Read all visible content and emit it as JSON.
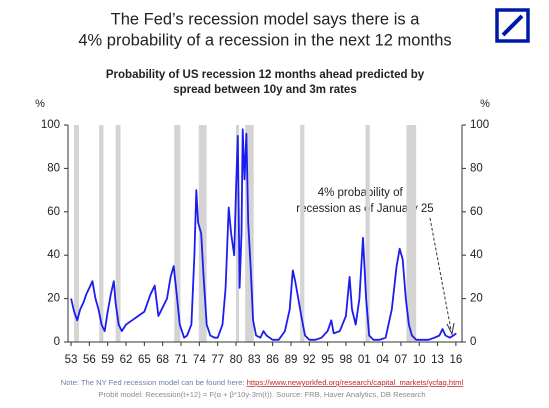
{
  "chart_data": {
    "type": "line",
    "title": [
      "The Fed’s recession model says there is a",
      "4% probability of a recession in the next 12 months"
    ],
    "subtitle": [
      "Probability of US recession 12 months ahead predicted by",
      "spread between 10y and 3m rates"
    ],
    "y_unit": "%",
    "y2_unit": "%",
    "color": "#1c1cf0",
    "recession_color": "#d4d4d4",
    "x": [
      1953.0,
      1953.5,
      1954.0,
      1954.5,
      1955.0,
      1955.5,
      1956.0,
      1956.5,
      1957.0,
      1957.5,
      1958.0,
      1958.5,
      1959.0,
      1959.5,
      1960.0,
      1960.3,
      1960.8,
      1961.3,
      1962.0,
      1963.0,
      1964.0,
      1965.0,
      1966.0,
      1966.7,
      1967.3,
      1968.0,
      1968.7,
      1969.3,
      1969.8,
      1970.3,
      1970.8,
      1971.5,
      1972.0,
      1972.7,
      1973.2,
      1973.5,
      1973.8,
      1974.3,
      1974.7,
      1975.2,
      1975.8,
      1976.5,
      1977.0,
      1977.8,
      1978.3,
      1978.8,
      1979.2,
      1979.7,
      1980.0,
      1980.3,
      1980.6,
      1980.9,
      1981.1,
      1981.4,
      1981.7,
      1982.0,
      1982.4,
      1982.8,
      1983.3,
      1984.0,
      1984.5,
      1985.0,
      1986.0,
      1987.0,
      1988.0,
      1988.8,
      1989.3,
      1989.7,
      1990.2,
      1990.7,
      1991.3,
      1992.0,
      1993.0,
      1994.0,
      1995.0,
      1995.6,
      1996.0,
      1997.0,
      1998.0,
      1998.6,
      1999.0,
      1999.6,
      2000.2,
      2000.8,
      2001.3,
      2001.8,
      2002.5,
      2003.5,
      2004.5,
      2005.5,
      2006.3,
      2006.8,
      2007.3,
      2007.8,
      2008.3,
      2008.8,
      2009.5,
      2010.5,
      2011.5,
      2012.5,
      2013.3,
      2013.8,
      2014.3,
      2015.0,
      2015.6,
      2016.07
    ],
    "values": [
      20,
      14,
      10,
      15,
      18,
      22,
      25,
      28,
      20,
      15,
      8,
      5,
      14,
      22,
      28,
      18,
      8,
      5,
      8,
      10,
      12,
      14,
      22,
      26,
      12,
      16,
      20,
      30,
      35,
      22,
      8,
      2,
      3,
      8,
      40,
      70,
      55,
      50,
      30,
      8,
      3,
      2,
      2,
      8,
      25,
      62,
      50,
      40,
      70,
      95,
      25,
      50,
      98,
      75,
      96,
      55,
      35,
      10,
      3,
      2,
      5,
      3,
      1,
      1,
      5,
      15,
      33,
      28,
      20,
      12,
      3,
      1,
      1,
      2,
      5,
      10,
      4,
      5,
      12,
      30,
      15,
      8,
      20,
      48,
      20,
      3,
      1,
      1,
      2,
      15,
      35,
      43,
      38,
      20,
      8,
      3,
      1,
      1,
      1,
      2,
      3,
      6,
      3,
      2,
      3,
      4
    ],
    "recessions": [
      [
        1953.5,
        1954.3
      ],
      [
        1957.6,
        1958.3
      ],
      [
        1960.3,
        1961.1
      ],
      [
        1969.9,
        1970.9
      ],
      [
        1973.9,
        1975.2
      ],
      [
        1980.0,
        1980.5
      ],
      [
        1981.5,
        1982.9
      ],
      [
        1990.5,
        1991.2
      ],
      [
        2001.2,
        2001.9
      ],
      [
        2007.9,
        2009.5
      ]
    ],
    "xlim": [
      1952.5,
      2017.0
    ],
    "xticks": [
      {
        "value": 1953,
        "label": "53"
      },
      {
        "value": 1956,
        "label": "56"
      },
      {
        "value": 1959,
        "label": "59"
      },
      {
        "value": 1962,
        "label": "62"
      },
      {
        "value": 1965,
        "label": "65"
      },
      {
        "value": 1968,
        "label": "68"
      },
      {
        "value": 1971,
        "label": "71"
      },
      {
        "value": 1974,
        "label": "74"
      },
      {
        "value": 1977,
        "label": "77"
      },
      {
        "value": 1980,
        "label": "80"
      },
      {
        "value": 1983,
        "label": "83"
      },
      {
        "value": 1986,
        "label": "86"
      },
      {
        "value": 1989,
        "label": "89"
      },
      {
        "value": 1992,
        "label": "92"
      },
      {
        "value": 1995,
        "label": "95"
      },
      {
        "value": 1998,
        "label": "98"
      },
      {
        "value": 2001,
        "label": "01"
      },
      {
        "value": 2004,
        "label": "04"
      },
      {
        "value": 2007,
        "label": "07"
      },
      {
        "value": 2010,
        "label": "10"
      },
      {
        "value": 2013,
        "label": "13"
      },
      {
        "value": 2016,
        "label": "16"
      }
    ],
    "ylim": [
      0,
      100
    ],
    "yticks": [
      0,
      20,
      40,
      60,
      80,
      100
    ],
    "y2lim": [
      0,
      100
    ],
    "y2ticks": [
      0,
      20,
      40,
      60,
      80,
      100
    ],
    "annotation": [
      "4% probability of a",
      "recession as of January 25"
    ],
    "note": {
      "text": "Note: The NY Fed recession model can be found here: ",
      "link": "https://www.newyorkfed.org/research/capital_markets/ycfaq.html"
    },
    "source": "Probit model: Recession(t+12) = F(α + β*10y-3m(t)). Source: FRB, Haver Analytics, DB Research"
  }
}
